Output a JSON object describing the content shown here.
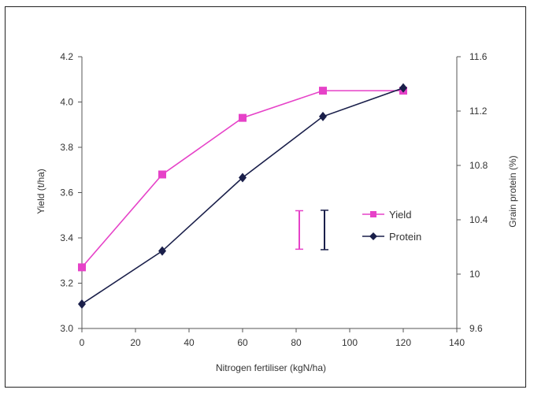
{
  "chart_data": {
    "type": "line",
    "xlabel": "Nitrogen fertiliser (kgN/ha)",
    "ylabel": "Yield (t/ha)",
    "y2label": "Grain protein (%)",
    "xlim": [
      0,
      140
    ],
    "ylim": [
      3.0,
      4.2
    ],
    "y2lim": [
      9.6,
      11.6
    ],
    "x_ticks": [
      "0",
      "20",
      "40",
      "60",
      "80",
      "100",
      "120",
      "140"
    ],
    "y_ticks": [
      "3.0",
      "3.2",
      "3.4",
      "3.6",
      "3.8",
      "4.0",
      "4.2"
    ],
    "y2_ticks": [
      "9.6",
      "10",
      "10.4",
      "10.8",
      "11.2",
      "11.6"
    ],
    "grid": false,
    "legend_position": "center-right",
    "series": [
      {
        "name": "Yield",
        "axis": "left",
        "color": "#e642c8",
        "marker": "square",
        "x": [
          0,
          30,
          60,
          90,
          120
        ],
        "values": [
          3.27,
          3.68,
          3.93,
          4.05,
          4.05
        ]
      },
      {
        "name": "Protein",
        "axis": "right",
        "color": "#1a1f4a",
        "marker": "diamond",
        "x": [
          0,
          30,
          60,
          90,
          120
        ],
        "values": [
          9.78,
          10.17,
          10.71,
          11.16,
          11.37
        ]
      }
    ],
    "error_bars": [
      {
        "series": "Yield",
        "color": "#e642c8",
        "low": 3.35,
        "high": 3.52
      },
      {
        "series": "Protein",
        "color": "#1a1f4a",
        "low": 10.18,
        "high": 10.47
      }
    ]
  }
}
